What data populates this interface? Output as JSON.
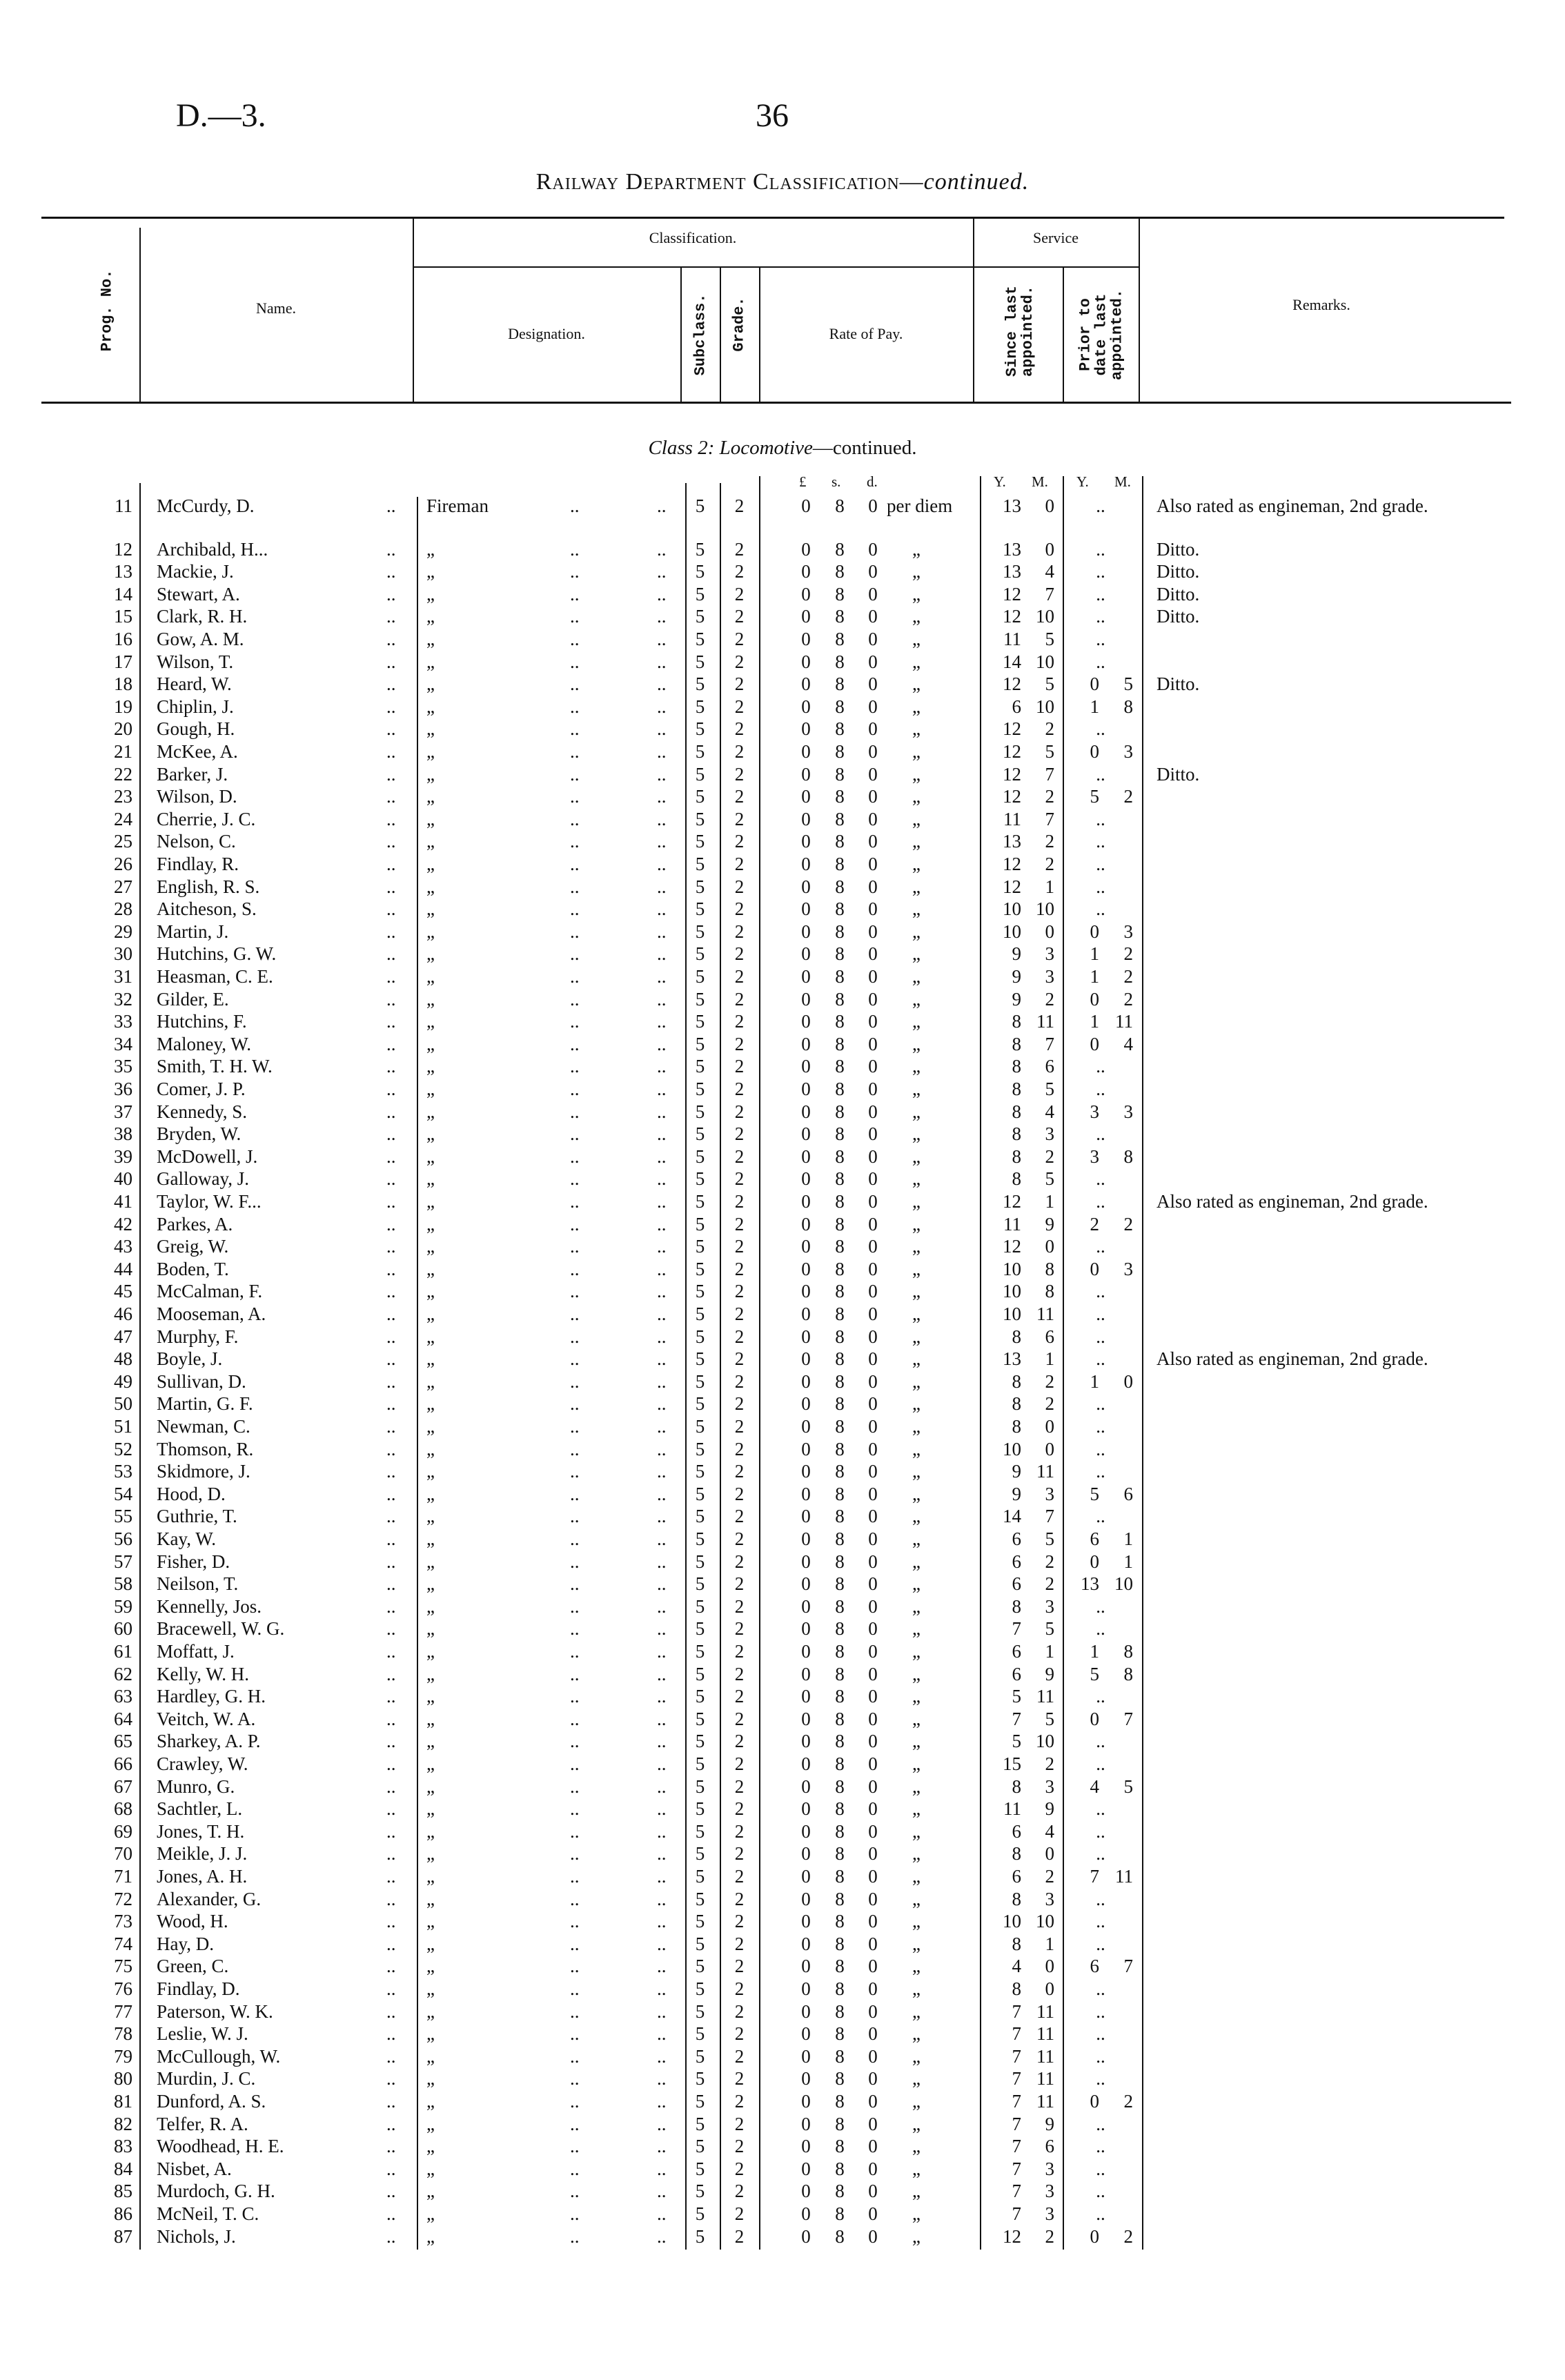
{
  "page": {
    "ref": "D.—3.",
    "number": "36"
  },
  "title": {
    "main": "Railway Department Classification—",
    "italic": "continued."
  },
  "header": {
    "prog_no": "Prog. No.",
    "name": "Name.",
    "classification": "Classification.",
    "designation": "Designation.",
    "subclass": "Subclass.",
    "grade": "Grade.",
    "rate": "Rate of Pay.",
    "service": "Service",
    "since": "Since last appointed.",
    "prior": "Prior to date last appointed.",
    "remarks": "Remarks."
  },
  "section": {
    "prefix": "Class 2: Locomotive",
    "suffix": "—continued."
  },
  "units": {
    "pound": "£",
    "shilling": "s.",
    "pence": "d.",
    "year": "Y.",
    "month": "M."
  },
  "defaults": {
    "designation": "Fireman",
    "ditto": "„",
    "leader": "..",
    "subclass": "5",
    "grade": "2",
    "rate": {
      "pounds": "0",
      "shillings": "8",
      "pence": "0",
      "per": "per diem"
    }
  },
  "table": {
    "columns": [
      "Prog. No.",
      "Name",
      "Since Y",
      "Since M",
      "Prior Y",
      "Prior M",
      "Remarks"
    ],
    "rows": [
      [
        "11",
        "McCurdy, D.",
        "13",
        "0",
        "",
        "",
        "Also rated as engineman, 2nd grade."
      ],
      [
        "12",
        "Archibald, H...",
        "13",
        "0",
        "",
        "",
        "Ditto."
      ],
      [
        "13",
        "Mackie, J.",
        "13",
        "4",
        "",
        "",
        "Ditto."
      ],
      [
        "14",
        "Stewart, A.",
        "12",
        "7",
        "",
        "",
        "Ditto."
      ],
      [
        "15",
        "Clark, R. H.",
        "12",
        "10",
        "",
        "",
        "Ditto."
      ],
      [
        "16",
        "Gow, A. M.",
        "11",
        "5",
        "",
        "",
        ""
      ],
      [
        "17",
        "Wilson, T.",
        "14",
        "10",
        "",
        "",
        ""
      ],
      [
        "18",
        "Heard, W.",
        "12",
        "5",
        "0",
        "5",
        "Ditto."
      ],
      [
        "19",
        "Chiplin, J.",
        "6",
        "10",
        "1",
        "8",
        ""
      ],
      [
        "20",
        "Gough, H.",
        "12",
        "2",
        "",
        "",
        ""
      ],
      [
        "21",
        "McKee, A.",
        "12",
        "5",
        "0",
        "3",
        ""
      ],
      [
        "22",
        "Barker, J.",
        "12",
        "7",
        "",
        "",
        "Ditto."
      ],
      [
        "23",
        "Wilson, D.",
        "12",
        "2",
        "5",
        "2",
        ""
      ],
      [
        "24",
        "Cherrie, J. C.",
        "11",
        "7",
        "",
        "",
        ""
      ],
      [
        "25",
        "Nelson, C.",
        "13",
        "2",
        "",
        "",
        ""
      ],
      [
        "26",
        "Findlay, R.",
        "12",
        "2",
        "",
        "",
        ""
      ],
      [
        "27",
        "English, R. S.",
        "12",
        "1",
        "",
        "",
        ""
      ],
      [
        "28",
        "Aitcheson, S.",
        "10",
        "10",
        "",
        "",
        ""
      ],
      [
        "29",
        "Martin, J.",
        "10",
        "0",
        "0",
        "3",
        ""
      ],
      [
        "30",
        "Hutchins, G. W.",
        "9",
        "3",
        "1",
        "2",
        ""
      ],
      [
        "31",
        "Heasman, C. E.",
        "9",
        "3",
        "1",
        "2",
        ""
      ],
      [
        "32",
        "Gilder, E.",
        "9",
        "2",
        "0",
        "2",
        ""
      ],
      [
        "33",
        "Hutchins, F.",
        "8",
        "11",
        "1",
        "11",
        ""
      ],
      [
        "34",
        "Maloney, W.",
        "8",
        "7",
        "0",
        "4",
        ""
      ],
      [
        "35",
        "Smith, T. H. W.",
        "8",
        "6",
        "",
        "",
        ""
      ],
      [
        "36",
        "Comer, J. P.",
        "8",
        "5",
        "",
        "",
        ""
      ],
      [
        "37",
        "Kennedy, S.",
        "8",
        "4",
        "3",
        "3",
        ""
      ],
      [
        "38",
        "Bryden, W.",
        "8",
        "3",
        "",
        "",
        ""
      ],
      [
        "39",
        "McDowell, J.",
        "8",
        "2",
        "3",
        "8",
        ""
      ],
      [
        "40",
        "Galloway, J.",
        "8",
        "5",
        "",
        "",
        ""
      ],
      [
        "41",
        "Taylor, W. F...",
        "12",
        "1",
        "",
        "",
        "Also rated as engineman, 2nd grade."
      ],
      [
        "42",
        "Parkes, A.",
        "11",
        "9",
        "2",
        "2",
        ""
      ],
      [
        "43",
        "Greig, W.",
        "12",
        "0",
        "",
        "",
        ""
      ],
      [
        "44",
        "Boden, T.",
        "10",
        "8",
        "0",
        "3",
        ""
      ],
      [
        "45",
        "McCalman, F.",
        "10",
        "8",
        "",
        "",
        ""
      ],
      [
        "46",
        "Mooseman, A.",
        "10",
        "11",
        "",
        "",
        ""
      ],
      [
        "47",
        "Murphy, F.",
        "8",
        "6",
        "",
        "",
        ""
      ],
      [
        "48",
        "Boyle, J.",
        "13",
        "1",
        "",
        "",
        "Also rated as engineman, 2nd grade."
      ],
      [
        "49",
        "Sullivan, D.",
        "8",
        "2",
        "1",
        "0",
        ""
      ],
      [
        "50",
        "Martin, G. F.",
        "8",
        "2",
        "",
        "",
        ""
      ],
      [
        "51",
        "Newman, C.",
        "8",
        "0",
        "",
        "",
        ""
      ],
      [
        "52",
        "Thomson, R.",
        "10",
        "0",
        "",
        "",
        ""
      ],
      [
        "53",
        "Skidmore, J.",
        "9",
        "11",
        "",
        "",
        ""
      ],
      [
        "54",
        "Hood, D.",
        "9",
        "3",
        "5",
        "6",
        ""
      ],
      [
        "55",
        "Guthrie, T.",
        "14",
        "7",
        "",
        "",
        ""
      ],
      [
        "56",
        "Kay, W.",
        "6",
        "5",
        "6",
        "1",
        ""
      ],
      [
        "57",
        "Fisher, D.",
        "6",
        "2",
        "0",
        "1",
        ""
      ],
      [
        "58",
        "Neilson, T.",
        "6",
        "2",
        "13",
        "10",
        ""
      ],
      [
        "59",
        "Kennelly, Jos.",
        "8",
        "3",
        "",
        "",
        ""
      ],
      [
        "60",
        "Bracewell, W. G.",
        "7",
        "5",
        "",
        "",
        ""
      ],
      [
        "61",
        "Moffatt, J.",
        "6",
        "1",
        "1",
        "8",
        ""
      ],
      [
        "62",
        "Kelly, W. H.",
        "6",
        "9",
        "5",
        "8",
        ""
      ],
      [
        "63",
        "Hardley, G. H.",
        "5",
        "11",
        "",
        "",
        ""
      ],
      [
        "64",
        "Veitch, W. A.",
        "7",
        "5",
        "0",
        "7",
        ""
      ],
      [
        "65",
        "Sharkey, A. P.",
        "5",
        "10",
        "",
        "",
        ""
      ],
      [
        "66",
        "Crawley, W.",
        "15",
        "2",
        "",
        "",
        ""
      ],
      [
        "67",
        "Munro, G.",
        "8",
        "3",
        "4",
        "5",
        ""
      ],
      [
        "68",
        "Sachtler, L.",
        "11",
        "9",
        "",
        "",
        ""
      ],
      [
        "69",
        "Jones, T. H.",
        "6",
        "4",
        "",
        "",
        ""
      ],
      [
        "70",
        "Meikle, J. J.",
        "8",
        "0",
        "",
        "",
        ""
      ],
      [
        "71",
        "Jones, A. H.",
        "6",
        "2",
        "7",
        "11",
        ""
      ],
      [
        "72",
        "Alexander, G.",
        "8",
        "3",
        "",
        "",
        ""
      ],
      [
        "73",
        "Wood, H.",
        "10",
        "10",
        "",
        "",
        ""
      ],
      [
        "74",
        "Hay, D.",
        "8",
        "1",
        "",
        "",
        ""
      ],
      [
        "75",
        "Green, C.",
        "4",
        "0",
        "6",
        "7",
        ""
      ],
      [
        "76",
        "Findlay, D.",
        "8",
        "0",
        "",
        "",
        ""
      ],
      [
        "77",
        "Paterson, W. K.",
        "7",
        "11",
        "",
        "",
        ""
      ],
      [
        "78",
        "Leslie, W. J.",
        "7",
        "11",
        "",
        "",
        ""
      ],
      [
        "79",
        "McCullough, W.",
        "7",
        "11",
        "",
        "",
        ""
      ],
      [
        "80",
        "Murdin, J. C.",
        "7",
        "11",
        "",
        "",
        ""
      ],
      [
        "81",
        "Dunford, A. S.",
        "7",
        "11",
        "0",
        "2",
        ""
      ],
      [
        "82",
        "Telfer, R. A.",
        "7",
        "9",
        "",
        "",
        ""
      ],
      [
        "83",
        "Woodhead, H. E.",
        "7",
        "6",
        "",
        "",
        ""
      ],
      [
        "84",
        "Nisbet, A.",
        "7",
        "3",
        "",
        "",
        ""
      ],
      [
        "85",
        "Murdoch, G. H.",
        "7",
        "3",
        "",
        "",
        ""
      ],
      [
        "86",
        "McNeil, T. C.",
        "7",
        "3",
        "",
        "",
        ""
      ],
      [
        "87",
        "Nichols, J.",
        "12",
        "2",
        "0",
        "2",
        ""
      ]
    ]
  }
}
